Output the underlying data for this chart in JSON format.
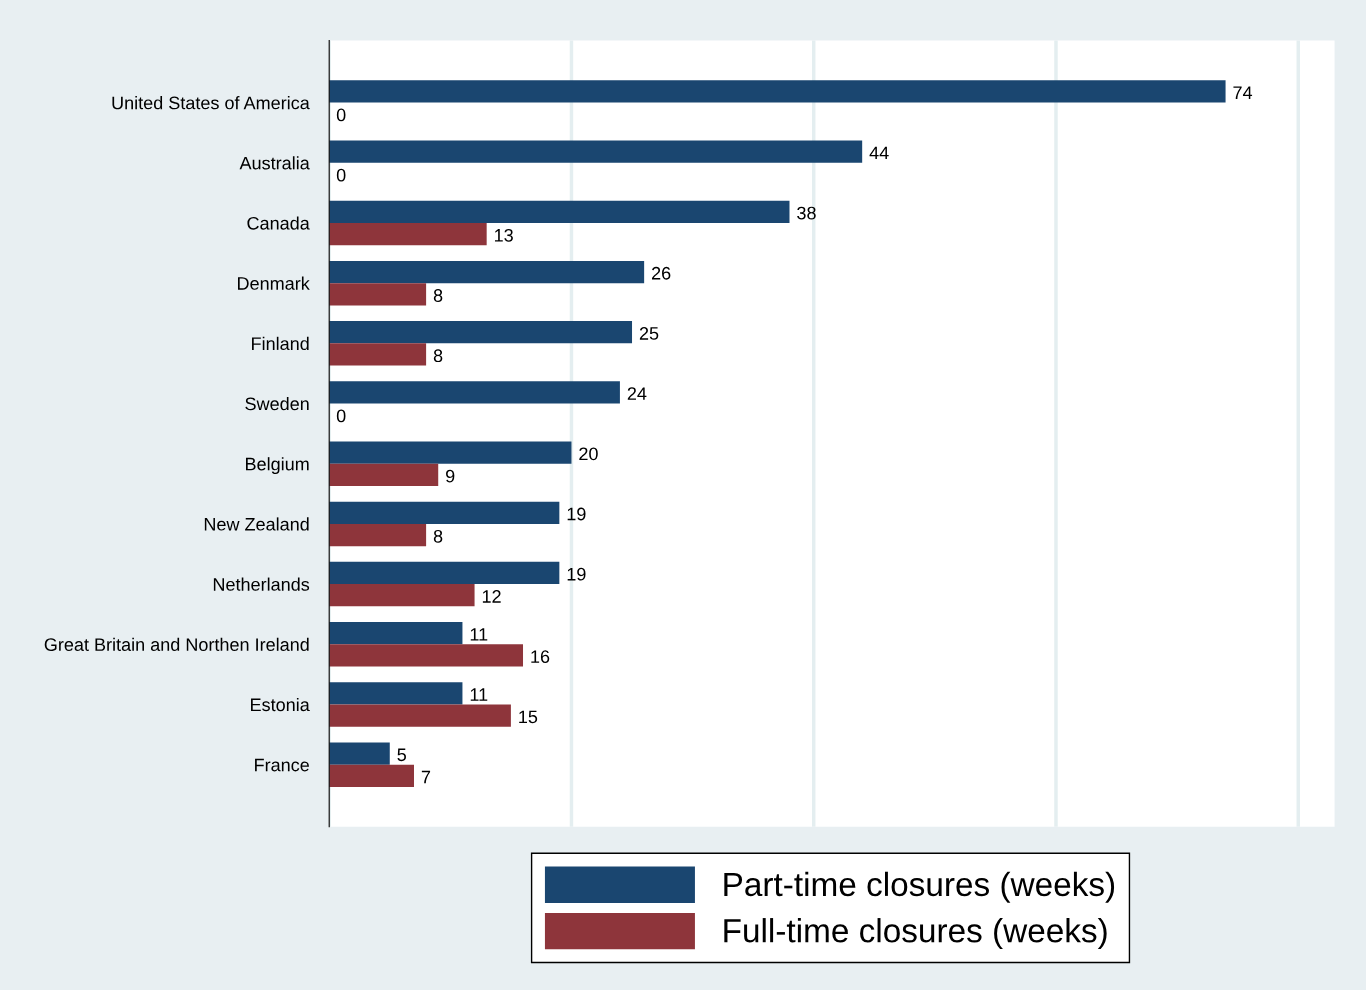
{
  "chart_data": {
    "type": "bar",
    "orientation": "horizontal",
    "categories": [
      "United States of America",
      "Australia",
      "Canada",
      "Denmark",
      "Finland",
      "Sweden",
      "Belgium",
      "New Zealand",
      "Netherlands",
      "Great Britain and Northen Ireland",
      "Estonia",
      "France"
    ],
    "series": [
      {
        "name": "Part-time closures (weeks)",
        "color": "#1a4670",
        "values": [
          74,
          44,
          38,
          26,
          25,
          24,
          20,
          19,
          19,
          11,
          11,
          5
        ]
      },
      {
        "name": "Full-time closures (weeks)",
        "color": "#8e353b",
        "values": [
          0,
          0,
          13,
          8,
          8,
          0,
          9,
          8,
          12,
          16,
          15,
          7
        ]
      }
    ],
    "xlim": [
      0,
      83
    ],
    "xticks": [
      {
        "value": 0,
        "label": null
      },
      {
        "value": 20,
        "label": null
      },
      {
        "value": 40,
        "label": null
      },
      {
        "value": 60,
        "label": null
      },
      {
        "value": 80,
        "label": null
      }
    ],
    "tick_labels": "y",
    "grid": "x",
    "legend": "bottom",
    "data_labels": true
  }
}
